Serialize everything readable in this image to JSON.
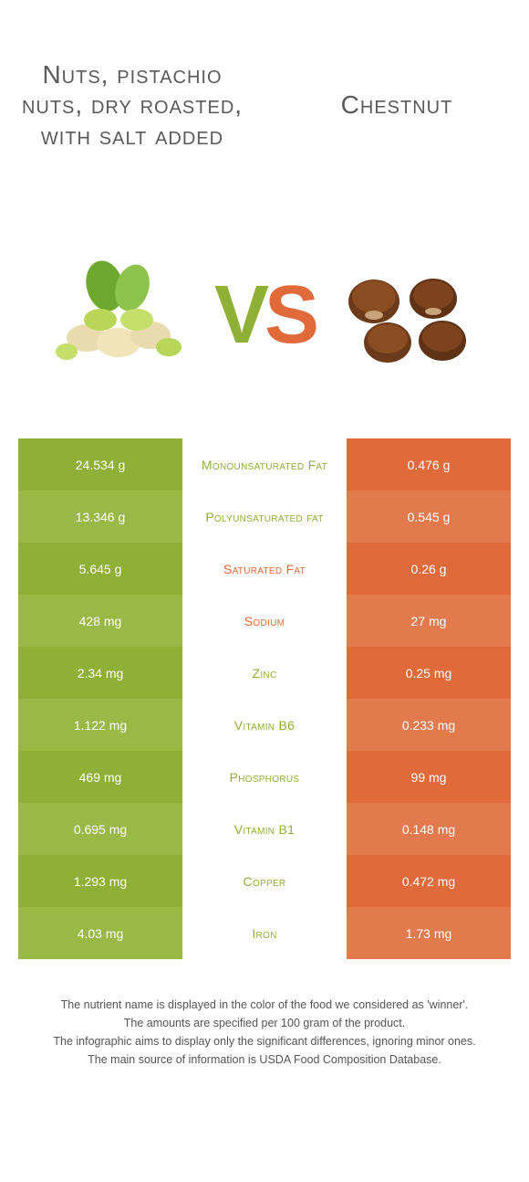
{
  "header": {
    "left_title": "Nuts, pistachio nuts, dry roasted, with salt added",
    "right_title": "Chestnut"
  },
  "vs": {
    "v": "V",
    "s": "S"
  },
  "colors": {
    "green1": "#8fb037",
    "green2": "#99b947",
    "orange1": "#e06a3a",
    "orange2": "#e37a4e",
    "white": "#ffffff",
    "text": "#5a5a5a"
  },
  "rows": [
    {
      "left": "24.534 g",
      "label": "Monounsaturated Fat",
      "right": "0.476 g",
      "winner": "left"
    },
    {
      "left": "13.346 g",
      "label": "Polyunsaturated fat",
      "right": "0.545 g",
      "winner": "left"
    },
    {
      "left": "5.645 g",
      "label": "Saturated Fat",
      "right": "0.26 g",
      "winner": "right"
    },
    {
      "left": "428 mg",
      "label": "Sodium",
      "right": "27 mg",
      "winner": "right"
    },
    {
      "left": "2.34 mg",
      "label": "Zinc",
      "right": "0.25 mg",
      "winner": "left"
    },
    {
      "left": "1.122 mg",
      "label": "Vitamin B6",
      "right": "0.233 mg",
      "winner": "left"
    },
    {
      "left": "469 mg",
      "label": "Phosphorus",
      "right": "99 mg",
      "winner": "left"
    },
    {
      "left": "0.695 mg",
      "label": "Vitamin B1",
      "right": "0.148 mg",
      "winner": "left"
    },
    {
      "left": "1.293 mg",
      "label": "Copper",
      "right": "0.472 mg",
      "winner": "left"
    },
    {
      "left": "4.03 mg",
      "label": "Iron",
      "right": "1.73 mg",
      "winner": "left"
    }
  ],
  "footer": {
    "l1": "The nutrient name is displayed in the color of the food we considered as 'winner'.",
    "l2": "The amounts are specified per 100 gram of the product.",
    "l3": "The infographic aims to display only the significant differences, ignoring minor ones.",
    "l4": "The main source of information is USDA Food Composition Database."
  }
}
